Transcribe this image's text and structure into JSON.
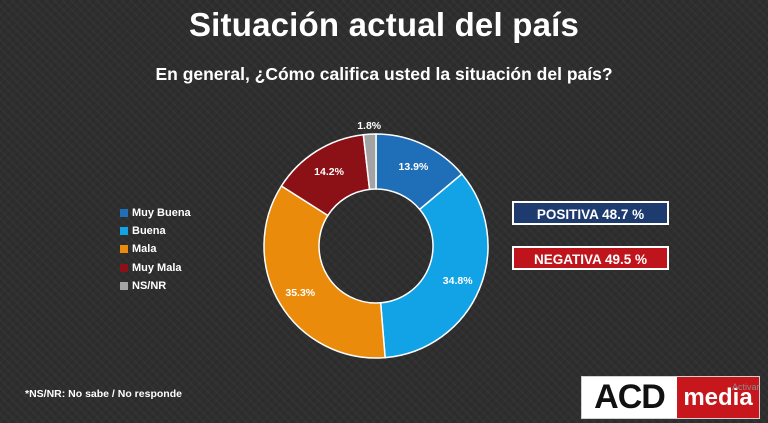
{
  "header": {
    "title": "Situación actual del país",
    "subtitle": "En general, ¿Cómo califica usted la situación del país?"
  },
  "chart_data": {
    "type": "pie",
    "style": "donut",
    "title": "Situación actual del país",
    "subtitle": "En general, ¿Cómo califica usted la situación del país?",
    "legend_position": "left",
    "categories": [
      "Muy Buena",
      "Buena",
      "Mala",
      "Muy Mala",
      "NS/NR"
    ],
    "values": [
      13.9,
      34.8,
      35.3,
      14.2,
      1.8
    ],
    "value_labels": [
      "13.9%",
      "34.8%",
      "35.3%",
      "14.2%",
      "1.8%"
    ],
    "colors": [
      "#1f6fb8",
      "#12a3e6",
      "#ea8b0b",
      "#8c1117",
      "#a3a3a3"
    ],
    "annotations": [
      {
        "label": "POSITIVA 48.7 %",
        "color": "#1d3b6f"
      },
      {
        "label": "NEGATIVA 49.5 %",
        "color": "#c0141c"
      }
    ]
  },
  "legend": {
    "items": [
      {
        "label": "Muy Buena",
        "color": "#1f6fb8"
      },
      {
        "label": "Buena",
        "color": "#12a3e6"
      },
      {
        "label": "Mala",
        "color": "#ea8b0b"
      },
      {
        "label": "Muy Mala",
        "color": "#8c1117"
      },
      {
        "label": "NS/NR",
        "color": "#a3a3a3"
      }
    ]
  },
  "summary": {
    "positive_label": "POSITIVA 48.7 %",
    "negative_label": "NEGATIVA 49.5 %"
  },
  "footnote": "*NS/NR: No sabe / No responde",
  "logo": {
    "part1": "ACD",
    "part2": "media"
  },
  "watermark": "Activar"
}
